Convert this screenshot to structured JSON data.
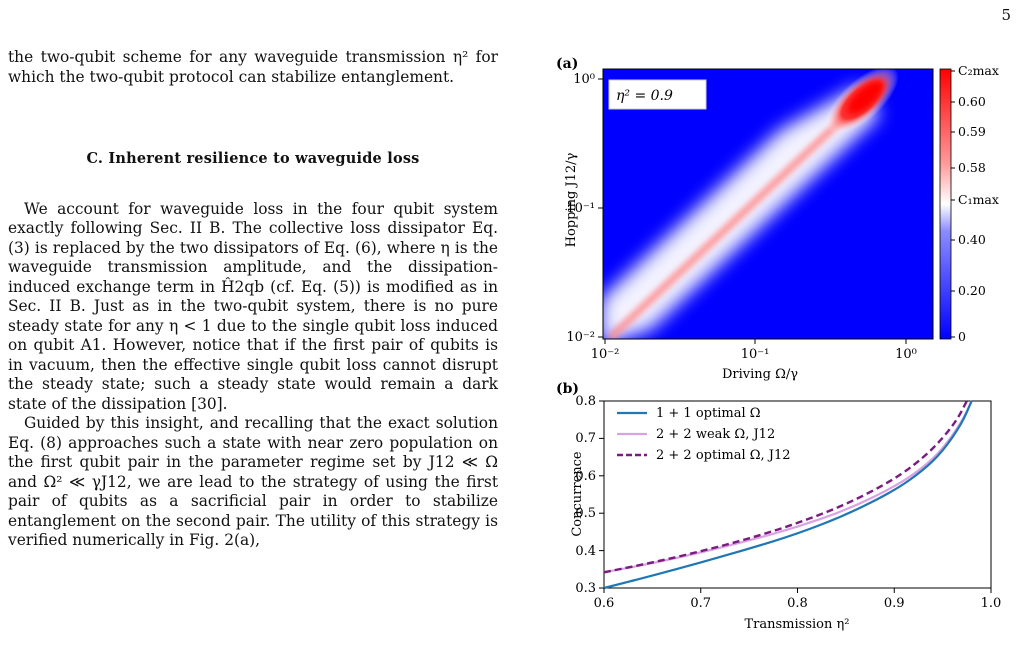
{
  "page_number": "5",
  "text": {
    "p1": "the two-qubit scheme for any waveguide transmission η² for which the two-qubit protocol can stabilize entanglement.",
    "section": "C.   Inherent resilience to waveguide loss",
    "p2": "We account for waveguide loss in the four qubit system exactly following Sec. II B. The collective loss dissipator Eq. (3) is replaced by the two dissipators of Eq. (6), where η is the waveguide transmission amplitude, and the dissipation-induced exchange term in Ĥ2qb (cf. Eq. (5)) is modified as in Sec. II B. Just as in the two-qubit system, there is no pure steady state for any η < 1 due to the single qubit loss induced on qubit A1. However, notice that if the first pair of qubits is in vacuum, then the effective single qubit loss cannot disrupt the steady state; such a steady state would remain a dark state of the dissipation [30].",
    "p3": "Guided by this insight, and recalling that the exact solution Eq. (8) approaches such a state with near zero population on the first qubit pair in the parameter regime set by J12 ≪ Ω and Ω² ≪ γJ12, we are lead to the strategy of using the first pair of qubits as a sacrificial pair in order to stabilize entanglement on the second pair. The utility of this strategy is verified numerically in Fig. 2(a),"
  },
  "figure": {
    "panel_a": {
      "label": "(a)",
      "annotation": "η² = 0.9",
      "xlabel": "Driving Ω/γ",
      "ylabel": "Hopping J12/γ",
      "x_ticks": [
        "10⁻²",
        "10⁻¹",
        "10⁰"
      ],
      "y_ticks": [
        "10⁰",
        "10⁻¹",
        "10⁻²"
      ],
      "colorbar_ticks": [
        "C₂max",
        "0.60",
        "0.59",
        "0.58",
        "C₁max",
        "0.40",
        "0.20",
        "0"
      ]
    },
    "panel_b": {
      "label": "(b)",
      "xlabel": "Transmission η²",
      "ylabel": "Concurrence",
      "x_ticks": [
        "0.6",
        "0.7",
        "0.8",
        "0.9",
        "1.0"
      ],
      "y_ticks": [
        "0.8",
        "0.7",
        "0.6",
        "0.5",
        "0.4",
        "0.3"
      ],
      "legend": [
        "1 + 1 optimal Ω",
        "2 + 2 weak Ω, J12",
        "2 + 2 optimal Ω, J12"
      ]
    }
  },
  "chart_data": [
    {
      "type": "heatmap",
      "title": "",
      "xlabel": "Driving Ω/γ",
      "ylabel": "Hopping J12/γ",
      "x_scale": "log",
      "y_scale": "log",
      "xlim": [
        0.01,
        1.3
      ],
      "ylim": [
        0.01,
        1.3
      ],
      "annotation": "η² = 0.9",
      "colorbar": [
        "0",
        "0.20",
        "0.40",
        "C₁max",
        "0.58",
        "0.59",
        "0.60",
        "C₂max"
      ],
      "colormap": [
        "#0000ff",
        "#ffffff",
        "#ff0000"
      ],
      "ridge": {
        "from": [
          0.01,
          0.01
        ],
        "to": [
          0.6,
          0.45
        ],
        "peak_at": [
          0.5,
          0.4
        ]
      }
    },
    {
      "type": "line",
      "xlabel": "Transmission η²",
      "ylabel": "Concurrence",
      "xlim": [
        0.6,
        1.0
      ],
      "ylim": [
        0.3,
        0.8
      ],
      "grid": false,
      "legend_position": "top-left",
      "series": [
        {
          "name": "1 + 1 optimal Ω",
          "color": "#1f77b4",
          "style": "solid",
          "x": [
            0.6,
            0.65,
            0.7,
            0.75,
            0.8,
            0.85,
            0.9,
            0.93,
            0.95,
            0.97,
            0.98
          ],
          "y": [
            0.3,
            0.333,
            0.368,
            0.405,
            0.445,
            0.495,
            0.56,
            0.615,
            0.665,
            0.74,
            0.8
          ]
        },
        {
          "name": "2 + 2 weak Ω, J12",
          "color": "#d9a2e3",
          "style": "solid",
          "x": [
            0.6,
            0.65,
            0.7,
            0.75,
            0.8,
            0.85,
            0.9,
            0.93,
            0.95,
            0.97,
            0.98
          ],
          "y": [
            0.342,
            0.366,
            0.395,
            0.427,
            0.463,
            0.508,
            0.57,
            0.622,
            0.672,
            0.745,
            0.8
          ]
        },
        {
          "name": "2 + 2 optimal Ω, J12",
          "color": "#7b1a7f",
          "style": "dashed",
          "x": [
            0.6,
            0.65,
            0.7,
            0.75,
            0.8,
            0.85,
            0.9,
            0.93,
            0.95,
            0.965,
            0.975
          ],
          "y": [
            0.342,
            0.368,
            0.398,
            0.432,
            0.473,
            0.523,
            0.59,
            0.648,
            0.7,
            0.75,
            0.8
          ]
        }
      ]
    }
  ]
}
